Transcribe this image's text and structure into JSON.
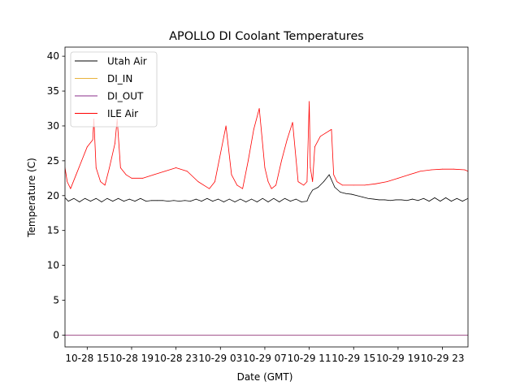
{
  "chart_data": {
    "type": "line",
    "title": "APOLLO DI Coolant Temperatures",
    "xlabel": "Date (GMT)",
    "ylabel": "Temperature (C)",
    "x_unit": "hours since 10-28 11:00 GMT",
    "xlim": [
      0,
      36.3
    ],
    "ylim": [
      -1.7,
      41.3
    ],
    "xticks": [
      {
        "x": 2,
        "label": "10-28 15"
      },
      {
        "x": 6,
        "label": "10-28 19"
      },
      {
        "x": 10,
        "label": "10-28 23"
      },
      {
        "x": 14,
        "label": "10-29 03"
      },
      {
        "x": 18,
        "label": "10-29 07"
      },
      {
        "x": 22,
        "label": "10-29 11"
      },
      {
        "x": 26,
        "label": "10-29 15"
      },
      {
        "x": 30,
        "label": "10-29 19"
      },
      {
        "x": 34,
        "label": "10-29 23"
      }
    ],
    "yticks": [
      0,
      5,
      10,
      15,
      20,
      25,
      30,
      35,
      40
    ],
    "legend_position": "upper-left",
    "series": [
      {
        "name": "Utah Air",
        "color": "#000000",
        "x": [
          0,
          0.3,
          0.8,
          1.3,
          1.8,
          2.3,
          2.8,
          3.3,
          3.8,
          4.3,
          4.8,
          5.3,
          5.8,
          6.3,
          6.8,
          7.3,
          7.8,
          8.3,
          8.8,
          9.3,
          9.8,
          10.3,
          10.8,
          11.3,
          11.8,
          12.3,
          12.8,
          13.3,
          13.8,
          14.3,
          14.8,
          15.3,
          15.8,
          16.3,
          16.8,
          17.3,
          17.8,
          18.3,
          18.8,
          19.3,
          19.8,
          20.3,
          20.8,
          21.3,
          21.8,
          22.0,
          22.3,
          22.8,
          23.3,
          23.8,
          24.3,
          24.8,
          25.3,
          25.8,
          26.3,
          26.8,
          27.3,
          27.8,
          28.3,
          28.8,
          29.3,
          29.8,
          30.3,
          30.8,
          31.3,
          31.8,
          32.3,
          32.8,
          33.3,
          33.8,
          34.3,
          34.8,
          35.3,
          35.8,
          36.3
        ],
        "values": [
          19.7,
          19.2,
          19.6,
          19.1,
          19.6,
          19.2,
          19.6,
          19.1,
          19.6,
          19.2,
          19.6,
          19.2,
          19.5,
          19.2,
          19.6,
          19.2,
          19.3,
          19.3,
          19.3,
          19.2,
          19.3,
          19.2,
          19.3,
          19.2,
          19.5,
          19.2,
          19.6,
          19.2,
          19.5,
          19.1,
          19.5,
          19.1,
          19.5,
          19.1,
          19.5,
          19.1,
          19.6,
          19.1,
          19.6,
          19.1,
          19.6,
          19.2,
          19.5,
          19.1,
          19.2,
          20.0,
          20.8,
          21.2,
          22.0,
          23.0,
          21.2,
          20.5,
          20.3,
          20.2,
          20.0,
          19.8,
          19.6,
          19.5,
          19.4,
          19.4,
          19.3,
          19.4,
          19.4,
          19.3,
          19.5,
          19.3,
          19.6,
          19.2,
          19.7,
          19.2,
          19.7,
          19.2,
          19.6,
          19.2,
          19.6
        ]
      },
      {
        "name": "DI_IN",
        "color": "#e8b33c",
        "x": [
          0,
          36.3
        ],
        "values": [
          0,
          0
        ]
      },
      {
        "name": "DI_OUT",
        "color": "#8a2c8a",
        "x": [
          0,
          36.3
        ],
        "values": [
          0,
          0
        ]
      },
      {
        "name": "ILE Air",
        "color": "#ff0000",
        "x": [
          0,
          0.2,
          0.5,
          1.0,
          1.5,
          2.0,
          2.5,
          2.6,
          2.8,
          3.2,
          3.6,
          4.0,
          4.5,
          4.7,
          5.0,
          5.5,
          6.0,
          7.0,
          8.0,
          9.0,
          10.0,
          11.0,
          12.0,
          13.0,
          13.5,
          14.0,
          14.5,
          15.0,
          15.5,
          16.0,
          16.5,
          17.0,
          17.5,
          18.0,
          18.3,
          18.6,
          19.0,
          19.5,
          20.0,
          20.5,
          21.0,
          21.5,
          21.8,
          22.0,
          22.1,
          22.3,
          22.5,
          23.0,
          23.5,
          24.0,
          24.2,
          24.5,
          25.0,
          26.0,
          27.0,
          28.0,
          29.0,
          30.0,
          31.0,
          32.0,
          33.0,
          34.0,
          35.0,
          36.0,
          36.3
        ],
        "values": [
          24.0,
          22.0,
          21.0,
          23.0,
          25.0,
          27.0,
          28.0,
          31.0,
          24.0,
          22.0,
          21.5,
          24.0,
          27.5,
          31.0,
          24.0,
          23.0,
          22.5,
          22.5,
          23.0,
          23.5,
          24.0,
          23.5,
          22.0,
          21.0,
          22.0,
          26.0,
          30.0,
          23.0,
          21.5,
          21.0,
          25.0,
          29.5,
          32.5,
          24.0,
          22.0,
          21.0,
          21.5,
          25.0,
          28.0,
          30.5,
          22.0,
          21.5,
          22.0,
          33.5,
          24.0,
          22.0,
          27.0,
          28.5,
          29.0,
          29.5,
          23.0,
          22.0,
          21.5,
          21.5,
          21.5,
          21.7,
          22.0,
          22.5,
          23.0,
          23.5,
          23.7,
          23.8,
          23.8,
          23.7,
          23.5
        ]
      }
    ]
  }
}
